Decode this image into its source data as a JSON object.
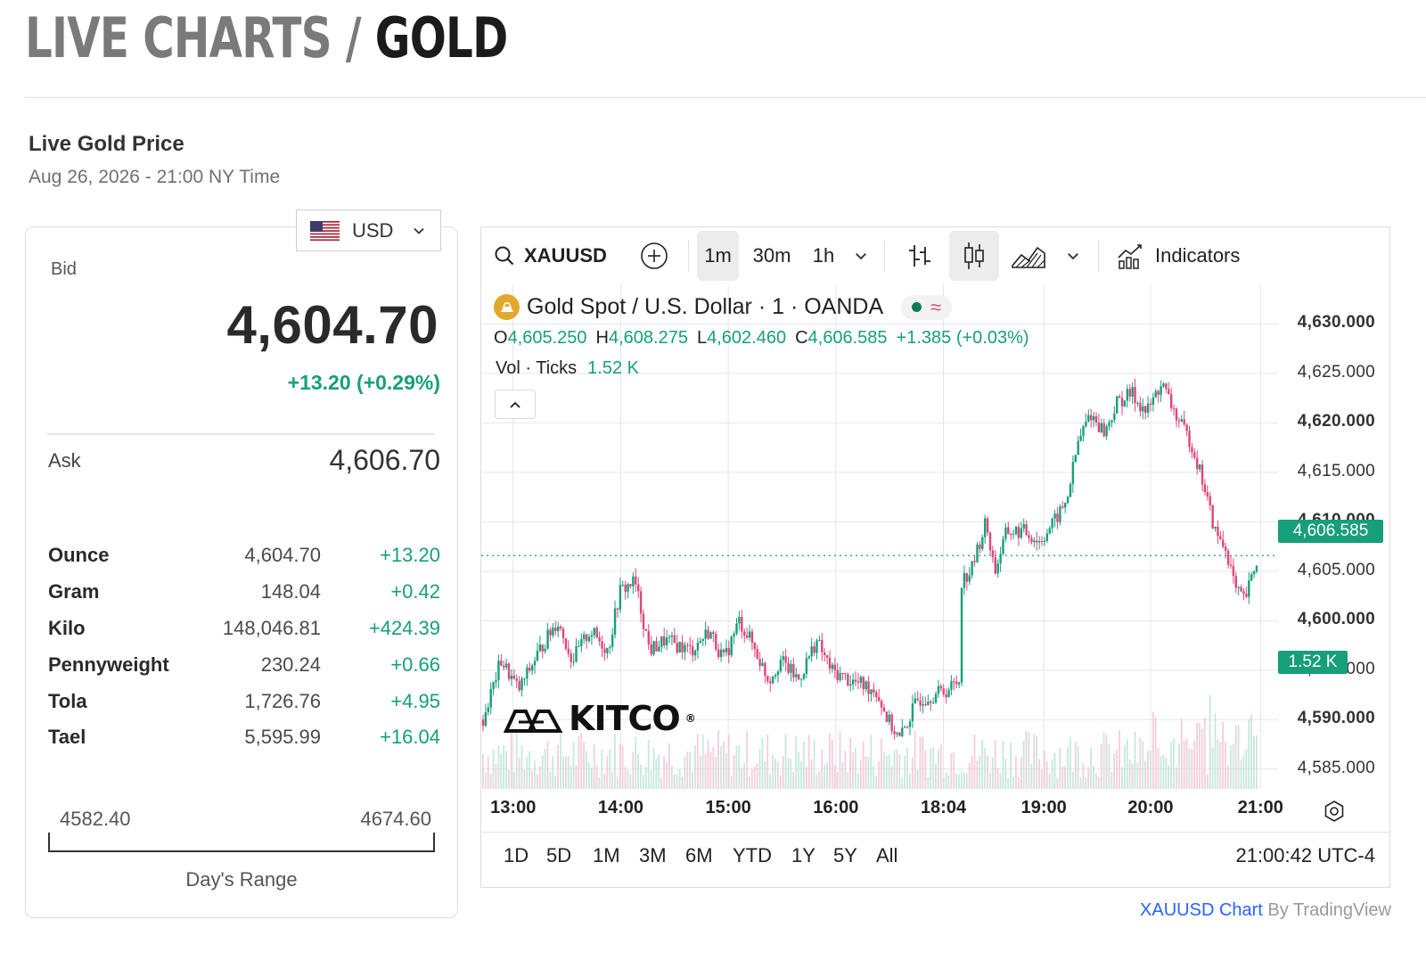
{
  "header": {
    "title_part1": "LIVE CHARTS /",
    "title_part2": "GOLD"
  },
  "live": {
    "label": "Live Gold Price",
    "timestamp": "Aug 26, 2026 - 21:00 NY Time"
  },
  "currency_selector": {
    "value": "USD",
    "flag_icon": "us-flag-icon"
  },
  "quote": {
    "bid_label": "Bid",
    "bid": "4,604.70",
    "change": "+13.20 (+0.29%)",
    "ask_label": "Ask",
    "ask": "4,606.70"
  },
  "units": [
    {
      "name": "Ounce",
      "price": "4,604.70",
      "change": "+13.20"
    },
    {
      "name": "Gram",
      "price": "148.04",
      "change": "+0.42"
    },
    {
      "name": "Kilo",
      "price": "148,046.81",
      "change": "+424.39"
    },
    {
      "name": "Pennyweight",
      "price": "230.24",
      "change": "+0.66"
    },
    {
      "name": "Tola",
      "price": "1,726.76",
      "change": "+4.95"
    },
    {
      "name": "Tael",
      "price": "5,595.99",
      "change": "+16.04"
    }
  ],
  "days_range": {
    "low": "4582.40",
    "high": "4674.60",
    "label": "Day's Range"
  },
  "toolbar": {
    "symbol": "XAUUSD",
    "intervals": [
      "1m",
      "30m",
      "1h"
    ],
    "active_interval": "1m",
    "indicators_label": "Indicators"
  },
  "legend": {
    "title": "Gold Spot / U.S. Dollar · 1 · OANDA",
    "o_label": "O",
    "o": "4,605.250",
    "h_label": "H",
    "h": "4,608.275",
    "l_label": "L",
    "l": "4,602.460",
    "c_label": "C",
    "c": "4,606.585",
    "change": "+1.385 (+0.03%)",
    "vol_label": "Vol · Ticks",
    "vol": "1.52 K"
  },
  "price_tag": "4,606.585",
  "volume_tag": "1.52 K",
  "watermark": "KITCO",
  "range_buttons": [
    "1D",
    "5D",
    "1M",
    "3M",
    "6M",
    "YTD",
    "1Y",
    "5Y",
    "All"
  ],
  "clock": "21:00:42 UTC-4",
  "credit": {
    "link": "XAUUSD Chart",
    "by": "By TradingView"
  },
  "colors": {
    "up": "#169f7a",
    "down": "#e0457b",
    "accent": "#2962ff",
    "gold": "#e2a82c"
  },
  "chart_data": {
    "type": "candlestick",
    "symbol": "XAUUSD",
    "interval": "1m",
    "x_tick_labels": [
      "13:00",
      "14:00",
      "15:00",
      "16:00",
      "18:04",
      "19:00",
      "20:00",
      "21:00"
    ],
    "y_tick_labels": [
      "4,630.000",
      "4,625.000",
      "4,620.000",
      "4,615.000",
      "4,610.000",
      "4,605.000",
      "4,600.000",
      "4,595.000",
      "4,590.000",
      "4,585.000"
    ],
    "ylim": [
      4583,
      4634
    ],
    "last_price": 4606.585,
    "series": [
      {
        "name": "price",
        "points": [
          [
            0.0,
            4590
          ],
          [
            0.6,
            4596
          ],
          [
            1.2,
            4593
          ],
          [
            1.9,
            4597
          ],
          [
            2.5,
            4600
          ],
          [
            3.0,
            4596
          ],
          [
            3.6,
            4599
          ],
          [
            4.2,
            4597
          ],
          [
            4.6,
            4603
          ],
          [
            5.1,
            4604
          ],
          [
            5.6,
            4597
          ],
          [
            6.1,
            4598
          ],
          [
            7.0,
            4597
          ],
          [
            7.6,
            4599
          ],
          [
            8.1,
            4596
          ],
          [
            8.6,
            4600
          ],
          [
            9.0,
            4598
          ],
          [
            9.6,
            4594
          ],
          [
            10.0,
            4596
          ],
          [
            10.6,
            4594
          ],
          [
            11.2,
            4598
          ],
          [
            11.7,
            4595
          ],
          [
            12.3,
            4594
          ],
          [
            13.2,
            4593
          ],
          [
            13.6,
            4590
          ],
          [
            14.0,
            4588
          ],
          [
            14.6,
            4592
          ],
          [
            15.6,
            4593
          ],
          [
            16.0,
            4594
          ],
          [
            16.05,
            4604
          ],
          [
            16.4,
            4605
          ],
          [
            16.9,
            4610
          ],
          [
            17.2,
            4605
          ],
          [
            17.6,
            4609
          ],
          [
            18.2,
            4609
          ],
          [
            18.7,
            4608
          ],
          [
            19.2,
            4610
          ],
          [
            19.6,
            4612
          ],
          [
            20.0,
            4618
          ],
          [
            20.4,
            4621
          ],
          [
            20.9,
            4619
          ],
          [
            21.3,
            4622
          ],
          [
            21.8,
            4623
          ],
          [
            22.3,
            4621
          ],
          [
            22.8,
            4624
          ],
          [
            23.4,
            4620
          ],
          [
            23.8,
            4618
          ],
          [
            24.2,
            4614
          ],
          [
            24.6,
            4609
          ],
          [
            25.0,
            4607
          ],
          [
            25.3,
            4603
          ],
          [
            25.6,
            4602
          ],
          [
            26.0,
            4606
          ]
        ]
      }
    ]
  }
}
